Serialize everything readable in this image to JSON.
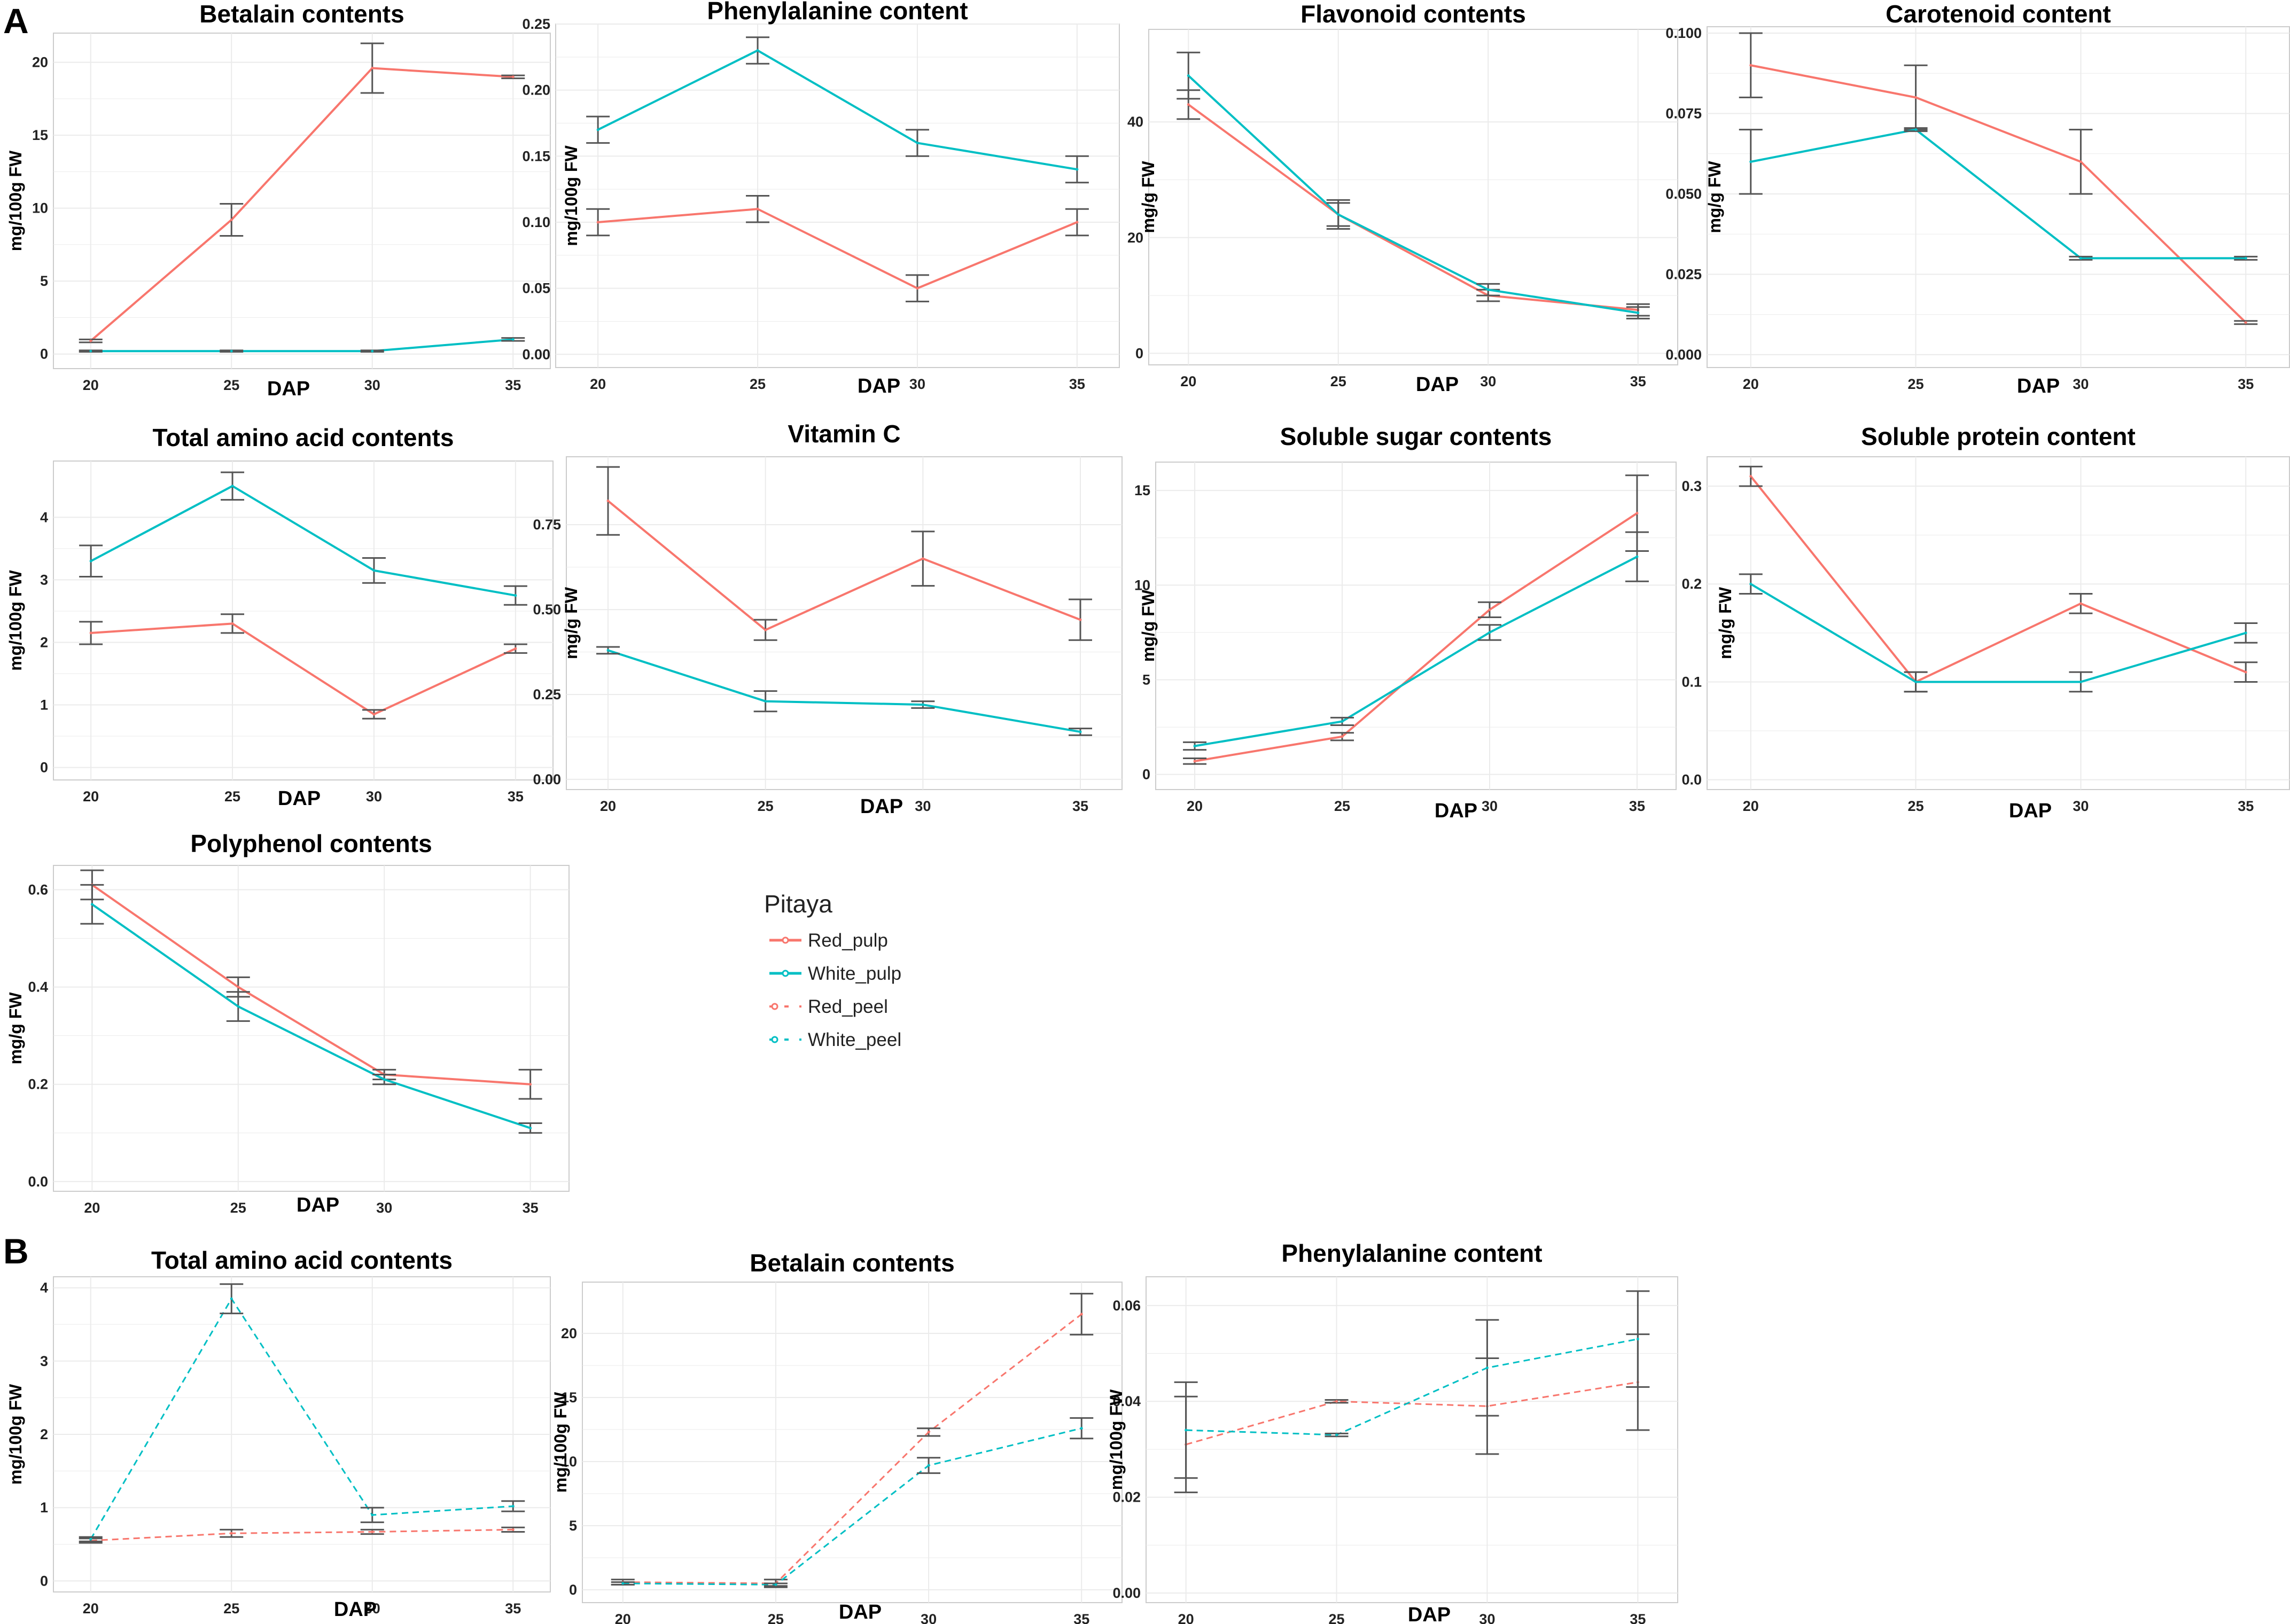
{
  "panel_labels": {
    "a": "A",
    "b": "B"
  },
  "colors": {
    "red": "#F8766D",
    "white": "#00BFC4",
    "errorbar": "#555555",
    "grid": "#ebebeb",
    "frame": "#cccccc"
  },
  "legend": {
    "title": "Pitaya",
    "items": [
      {
        "label": "Red_pulp",
        "series": "red",
        "style": "solid"
      },
      {
        "label": "White_pulp",
        "series": "white",
        "style": "solid"
      },
      {
        "label": "Red_peel",
        "series": "red",
        "style": "dashed"
      },
      {
        "label": "White_peel",
        "series": "white",
        "style": "dashed"
      }
    ]
  },
  "chart_data": [
    {
      "id": "a-betalain",
      "type": "line",
      "title": "Betalain contents",
      "xlabel": "DAP",
      "ylabel": "mg/100g FW",
      "x": [
        20,
        25,
        30,
        35
      ],
      "ylim": [
        -1,
        22
      ],
      "yticks": [
        0,
        5,
        10,
        15,
        20
      ],
      "ytick_labels": [
        "0",
        "5",
        "10",
        "15",
        "20"
      ],
      "grid": true,
      "series": [
        {
          "name": "Red_pulp",
          "color": "red",
          "style": "solid",
          "values": [
            0.9,
            9.2,
            19.6,
            19.0
          ],
          "err": [
            0.1,
            1.1,
            1.7,
            0.1
          ]
        },
        {
          "name": "White_pulp",
          "color": "white",
          "style": "solid",
          "values": [
            0.2,
            0.2,
            0.2,
            1.0
          ],
          "err": [
            0.05,
            0.05,
            0.05,
            0.1
          ]
        }
      ]
    },
    {
      "id": "a-phenylalanine",
      "type": "line",
      "title": "Phenylalanine content",
      "xlabel": "DAP",
      "ylabel": "mg/100g FW",
      "x": [
        20,
        25,
        30,
        35
      ],
      "ylim": [
        -0.01,
        0.25
      ],
      "yticks": [
        0,
        0.05,
        0.1,
        0.15,
        0.2,
        0.25
      ],
      "ytick_labels": [
        "0.00",
        "0.05",
        "0.10",
        "0.15",
        "0.20",
        "0.25"
      ],
      "grid": true,
      "series": [
        {
          "name": "Red_pulp",
          "color": "red",
          "style": "solid",
          "values": [
            0.1,
            0.11,
            0.05,
            0.1
          ],
          "err": [
            0.01,
            0.01,
            0.01,
            0.01
          ]
        },
        {
          "name": "White_pulp",
          "color": "white",
          "style": "solid",
          "values": [
            0.17,
            0.23,
            0.16,
            0.14
          ],
          "err": [
            0.01,
            0.01,
            0.01,
            0.01
          ]
        }
      ]
    },
    {
      "id": "a-flavonoid",
      "type": "line",
      "title": "Flavonoid contents",
      "xlabel": "DAP",
      "ylabel": "mg/g FW",
      "x": [
        20,
        25,
        30,
        35
      ],
      "ylim": [
        -2,
        56
      ],
      "yticks": [
        0,
        20,
        40
      ],
      "ytick_labels": [
        "0",
        "20",
        "40"
      ],
      "grid": true,
      "series": [
        {
          "name": "Red_pulp",
          "color": "red",
          "style": "solid",
          "values": [
            43,
            24,
            10,
            7.5
          ],
          "err": [
            2.5,
            2.5,
            1,
            1
          ]
        },
        {
          "name": "White_pulp",
          "color": "white",
          "style": "solid",
          "values": [
            48,
            24,
            11,
            7
          ],
          "err": [
            4,
            2,
            1,
            1
          ]
        }
      ]
    },
    {
      "id": "a-carotenoid",
      "type": "line",
      "title": "Carotenoid content",
      "xlabel": "DAP",
      "ylabel": "mg/g FW",
      "x": [
        20,
        25,
        30,
        35
      ],
      "ylim": [
        -0.004,
        0.102
      ],
      "yticks": [
        0,
        0.025,
        0.05,
        0.075,
        0.1
      ],
      "ytick_labels": [
        "0.000",
        "0.025",
        "0.050",
        "0.075",
        "0.100"
      ],
      "grid": true,
      "series": [
        {
          "name": "Red_pulp",
          "color": "red",
          "style": "solid",
          "values": [
            0.09,
            0.08,
            0.06,
            0.01
          ],
          "err": [
            0.01,
            0.01,
            0.01,
            0.0005
          ]
        },
        {
          "name": "White_pulp",
          "color": "white",
          "style": "solid",
          "values": [
            0.06,
            0.07,
            0.03,
            0.03
          ],
          "err": [
            0.01,
            0.0005,
            0.0005,
            0.0005
          ]
        }
      ]
    },
    {
      "id": "a-amino",
      "type": "line",
      "title": "Total amino acid contents",
      "xlabel": "DAP",
      "ylabel": "mg/100g FW",
      "x": [
        20,
        25,
        30,
        35
      ],
      "ylim": [
        -0.2,
        4.9
      ],
      "yticks": [
        0,
        1,
        2,
        3,
        4
      ],
      "ytick_labels": [
        "0",
        "1",
        "2",
        "3",
        "4"
      ],
      "grid": true,
      "series": [
        {
          "name": "Red_pulp",
          "color": "red",
          "style": "solid",
          "values": [
            2.15,
            2.3,
            0.85,
            1.9
          ],
          "err": [
            0.18,
            0.15,
            0.07,
            0.07
          ]
        },
        {
          "name": "White_pulp",
          "color": "white",
          "style": "solid",
          "values": [
            3.3,
            4.5,
            3.15,
            2.75
          ],
          "err": [
            0.25,
            0.22,
            0.2,
            0.15
          ]
        }
      ]
    },
    {
      "id": "a-vitaminc",
      "type": "line",
      "title": "Vitamin C",
      "xlabel": "DAP",
      "ylabel": "mg/g FW",
      "x": [
        20,
        25,
        30,
        35
      ],
      "ylim": [
        -0.03,
        0.95
      ],
      "yticks": [
        0,
        0.25,
        0.5,
        0.75
      ],
      "ytick_labels": [
        "0.00",
        "0.25",
        "0.50",
        "0.75"
      ],
      "grid": true,
      "series": [
        {
          "name": "Red_pulp",
          "color": "red",
          "style": "solid",
          "values": [
            0.82,
            0.44,
            0.65,
            0.47
          ],
          "err": [
            0.1,
            0.03,
            0.08,
            0.06
          ]
        },
        {
          "name": "White_pulp",
          "color": "white",
          "style": "solid",
          "values": [
            0.38,
            0.23,
            0.22,
            0.14
          ],
          "err": [
            0.01,
            0.03,
            0.01,
            0.01
          ]
        }
      ]
    },
    {
      "id": "a-sugar",
      "type": "line",
      "title": "Soluble sugar contents",
      "xlabel": "DAP",
      "ylabel": "mg/g FW",
      "x": [
        20,
        25,
        30,
        35
      ],
      "ylim": [
        -0.8,
        16.5
      ],
      "yticks": [
        0,
        5,
        10,
        15
      ],
      "ytick_labels": [
        "0",
        "5",
        "10",
        "15"
      ],
      "grid": true,
      "series": [
        {
          "name": "Red_pulp",
          "color": "red",
          "style": "solid",
          "values": [
            0.7,
            2.0,
            8.7,
            13.8
          ],
          "err": [
            0.15,
            0.2,
            0.4,
            2
          ]
        },
        {
          "name": "White_pulp",
          "color": "white",
          "style": "solid",
          "values": [
            1.5,
            2.8,
            7.5,
            11.5
          ],
          "err": [
            0.2,
            0.2,
            0.4,
            1.3
          ]
        }
      ]
    },
    {
      "id": "a-protein",
      "type": "line",
      "title": "Soluble protein content",
      "xlabel": "DAP",
      "ylabel": "mg/g FW",
      "x": [
        20,
        25,
        30,
        35
      ],
      "ylim": [
        -0.01,
        0.33
      ],
      "yticks": [
        0,
        0.1,
        0.2,
        0.3
      ],
      "ytick_labels": [
        "0.0",
        "0.1",
        "0.2",
        "0.3"
      ],
      "grid": true,
      "series": [
        {
          "name": "Red_pulp",
          "color": "red",
          "style": "solid",
          "values": [
            0.31,
            0.1,
            0.18,
            0.11
          ],
          "err": [
            0.01,
            0.01,
            0.01,
            0.01
          ]
        },
        {
          "name": "White_pulp",
          "color": "white",
          "style": "solid",
          "values": [
            0.2,
            0.1,
            0.1,
            0.15
          ],
          "err": [
            0.01,
            0.01,
            0.01,
            0.01
          ]
        }
      ]
    },
    {
      "id": "a-polyphenol",
      "type": "line",
      "title": "Polyphenol contents",
      "xlabel": "DAP",
      "ylabel": "mg/g FW",
      "x": [
        20,
        25,
        30,
        35
      ],
      "ylim": [
        -0.02,
        0.65
      ],
      "yticks": [
        0,
        0.2,
        0.4,
        0.6
      ],
      "ytick_labels": [
        "0.0",
        "0.2",
        "0.4",
        "0.6"
      ],
      "grid": true,
      "series": [
        {
          "name": "Red_pulp",
          "color": "red",
          "style": "solid",
          "values": [
            0.61,
            0.4,
            0.22,
            0.2
          ],
          "err": [
            0.03,
            0.02,
            0.01,
            0.03
          ]
        },
        {
          "name": "White_pulp",
          "color": "white",
          "style": "solid",
          "values": [
            0.57,
            0.36,
            0.21,
            0.11
          ],
          "err": [
            0.04,
            0.03,
            0.01,
            0.01
          ]
        }
      ]
    },
    {
      "id": "b-amino",
      "type": "line",
      "title": "Total amino acid contents",
      "xlabel": "DAP",
      "ylabel": "mg/100g FW",
      "x": [
        20,
        25,
        30,
        35
      ],
      "ylim": [
        -0.15,
        4.15
      ],
      "yticks": [
        0,
        1,
        2,
        3,
        4
      ],
      "ytick_labels": [
        "0",
        "1",
        "2",
        "3",
        "4"
      ],
      "grid": true,
      "series": [
        {
          "name": "Red_peel",
          "color": "red",
          "style": "dashed",
          "values": [
            0.55,
            0.65,
            0.67,
            0.7
          ],
          "err": [
            0.03,
            0.05,
            0.03,
            0.03
          ]
        },
        {
          "name": "White_peel",
          "color": "white",
          "style": "dashed",
          "values": [
            0.57,
            3.85,
            0.9,
            1.02
          ],
          "err": [
            0.03,
            0.2,
            0.1,
            0.07
          ]
        }
      ]
    },
    {
      "id": "b-betalain",
      "type": "line",
      "title": "Betalain contents",
      "xlabel": "DAP",
      "ylabel": "mg/100g FW",
      "x": [
        20,
        25,
        30,
        35
      ],
      "ylim": [
        -1,
        24
      ],
      "yticks": [
        0,
        5,
        10,
        15,
        20
      ],
      "ytick_labels": [
        "0",
        "5",
        "10",
        "15",
        "20"
      ],
      "grid": true,
      "series": [
        {
          "name": "Red_peel",
          "color": "red",
          "style": "dashed",
          "values": [
            0.6,
            0.5,
            12.3,
            21.5
          ],
          "err": [
            0.2,
            0.3,
            0.3,
            1.6
          ]
        },
        {
          "name": "White_peel",
          "color": "white",
          "style": "dashed",
          "values": [
            0.5,
            0.4,
            9.7,
            12.6
          ],
          "err": [
            0.1,
            0.1,
            0.6,
            0.8
          ]
        }
      ]
    },
    {
      "id": "b-phenylalanine",
      "type": "line",
      "title": "Phenylalanine content",
      "xlabel": "DAP",
      "ylabel": "mg/100g FW",
      "x": [
        20,
        25,
        30,
        35
      ],
      "ylim": [
        -0.002,
        0.066
      ],
      "yticks": [
        0,
        0.02,
        0.04,
        0.06
      ],
      "ytick_labels": [
        "0.00",
        "0.02",
        "0.04",
        "0.06"
      ],
      "grid": true,
      "series": [
        {
          "name": "Red_peel",
          "color": "red",
          "style": "dashed",
          "values": [
            0.031,
            0.04,
            0.039,
            0.044
          ],
          "err": [
            0.01,
            0.0003,
            0.01,
            0.01
          ]
        },
        {
          "name": "White_peel",
          "color": "white",
          "style": "dashed",
          "values": [
            0.034,
            0.033,
            0.047,
            0.053
          ],
          "err": [
            0.01,
            0.0003,
            0.01,
            0.01
          ]
        }
      ]
    }
  ]
}
